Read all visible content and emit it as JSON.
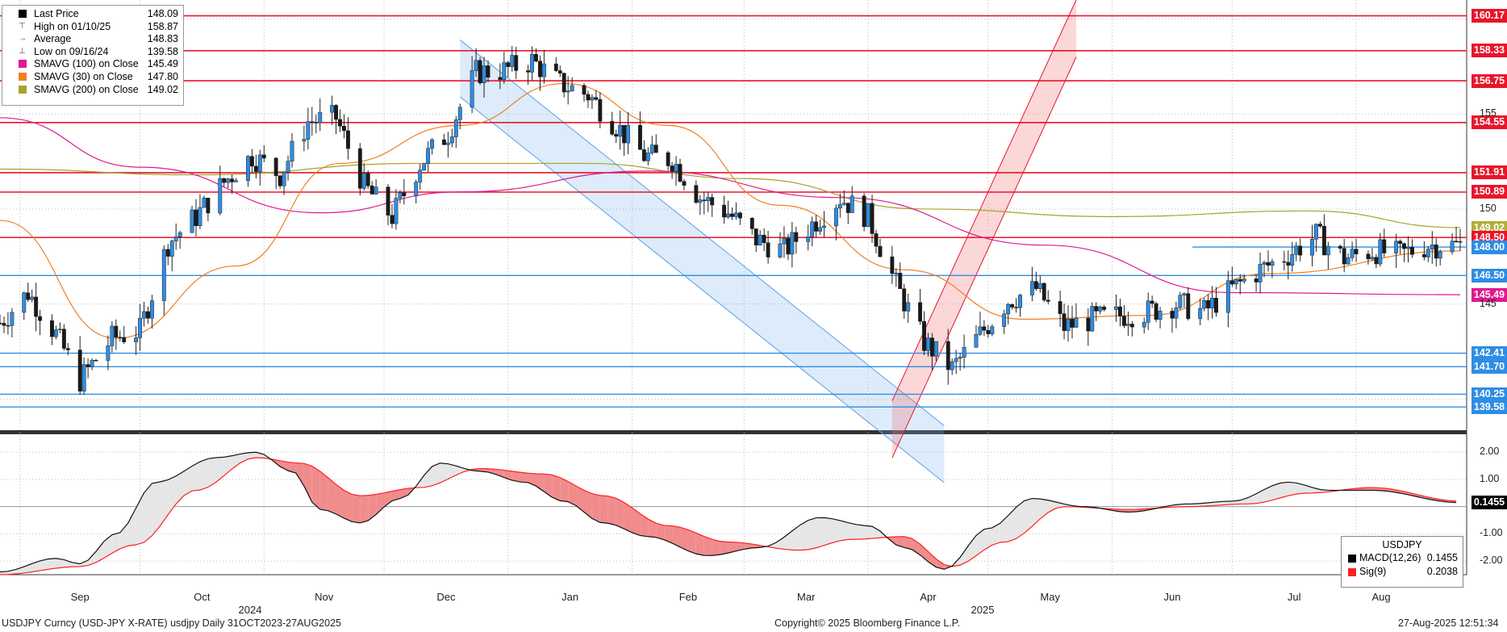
{
  "legend": {
    "items": [
      {
        "name": "Last Price",
        "value": "148.09",
        "color": "#000000",
        "icon": "filled-square"
      },
      {
        "name": "High on 01/10/25",
        "value": "158.87",
        "color": "",
        "icon": "high-marker-icon"
      },
      {
        "name": "Average",
        "value": "148.83",
        "color": "",
        "icon": "average-marker-icon"
      },
      {
        "name": "Low on 09/16/24",
        "value": "139.58",
        "color": "",
        "icon": "low-marker-icon"
      },
      {
        "name": "SMAVG (100)  on Close",
        "value": "145.49",
        "color": "#e0198f",
        "icon": "swatch"
      },
      {
        "name": "SMAVG (30)  on Close",
        "value": "147.80",
        "color": "#f07f22",
        "icon": "swatch"
      },
      {
        "name": "SMAVG (200)  on Close",
        "value": "149.02",
        "color": "#a8a22a",
        "icon": "swatch"
      }
    ]
  },
  "macd_legend": {
    "title": "USDJPY",
    "items": [
      {
        "name": "MACD(12,26)",
        "value": "0.1455",
        "color": "#000000"
      },
      {
        "name": "Sig(9)",
        "value": "0.2038",
        "color": "#ff2020"
      }
    ]
  },
  "price_tags": [
    {
      "label": "160.17",
      "value": 160.17,
      "color": "#e8152b"
    },
    {
      "label": "158.33",
      "value": 158.33,
      "color": "#e8152b"
    },
    {
      "label": "156.75",
      "value": 156.75,
      "color": "#e8152b"
    },
    {
      "label": "154.55",
      "value": 154.55,
      "color": "#e8152b"
    },
    {
      "label": "151.91",
      "value": 151.91,
      "color": "#e8152b"
    },
    {
      "label": "150.89",
      "value": 150.89,
      "color": "#e8152b"
    },
    {
      "label": "149.02",
      "value": 149.02,
      "color": "#a8a22a"
    },
    {
      "label": "148.50",
      "value": 148.5,
      "color": "#e8152b"
    },
    {
      "label": "148.00",
      "value": 148.0,
      "color": "#2f8de4"
    },
    {
      "label": "146.50",
      "value": 146.5,
      "color": "#2f8de4"
    },
    {
      "label": "145.49",
      "value": 145.49,
      "color": "#e0198f"
    },
    {
      "label": "142.41",
      "value": 142.41,
      "color": "#2f8de4"
    },
    {
      "label": "141.70",
      "value": 141.7,
      "color": "#2f8de4"
    },
    {
      "label": "140.25",
      "value": 140.25,
      "color": "#2f8de4"
    },
    {
      "label": "139.58",
      "value": 139.58,
      "color": "#2f8de4"
    }
  ],
  "macd_tag": {
    "label": "0.1455",
    "color": "#000000"
  },
  "price_axis_ticks": [
    "155",
    "150",
    "145"
  ],
  "macd_axis_ticks": [
    "2.00",
    "1.00",
    "-1.00",
    "-2.00"
  ],
  "months": [
    "Sep",
    "Oct",
    "Nov",
    "Dec",
    "Jan",
    "Feb",
    "Mar",
    "Apr",
    "May",
    "Jun",
    "Jul",
    "Aug"
  ],
  "years": [
    "2024",
    "2025"
  ],
  "footer": {
    "left": "USDJPY Curncy (USD-JPY X-RATE) usdjpy  Daily 31OCT2023-27AUG2025",
    "center": "Copyright© 2025 Bloomberg Finance L.P.",
    "right": "27-Aug-2025 12:51:34"
  },
  "colors": {
    "up": "#2f8de4",
    "down": "#1a1a1a",
    "red_line": "#e8152b",
    "blue_line": "#2f8de4"
  },
  "chart_data": {
    "type": "candlestick",
    "title": "",
    "ylim": [
      138.4,
      161.0
    ],
    "macd_ylim": [
      -2.5,
      2.6
    ],
    "horizontal_levels": {
      "resistance_red": [
        160.17,
        158.33,
        156.75,
        154.55,
        151.91,
        150.89,
        148.5
      ],
      "support_blue": [
        146.5,
        142.41,
        141.7,
        140.25,
        139.58,
        148.0
      ]
    },
    "descending_channel": {
      "from": [
        "2024-12-20",
        158.9
      ],
      "to": [
        "2025-04-20",
        138.6
      ],
      "width": 3.0
    },
    "ascending_channel": {
      "from": [
        "2025-04-07",
        139.9
      ],
      "to": [
        "2025-05-23",
        161.0
      ],
      "width": 3.0
    },
    "close_series": {
      "dates": [
        "2024-08-27",
        "2024-09-03",
        "2024-09-10",
        "2024-09-16",
        "2024-09-24",
        "2024-10-01",
        "2024-10-08",
        "2024-10-15",
        "2024-10-22",
        "2024-10-29",
        "2024-11-05",
        "2024-11-12",
        "2024-11-19",
        "2024-11-26",
        "2024-12-03",
        "2024-12-10",
        "2024-12-17",
        "2024-12-24",
        "2024-12-31",
        "2025-01-07",
        "2025-01-14",
        "2025-01-21",
        "2025-01-28",
        "2025-02-04",
        "2025-02-11",
        "2025-02-18",
        "2025-02-25",
        "2025-03-04",
        "2025-03-11",
        "2025-03-18",
        "2025-03-25",
        "2025-04-01",
        "2025-04-08",
        "2025-04-15",
        "2025-04-22",
        "2025-04-29",
        "2025-05-06",
        "2025-05-13",
        "2025-05-20",
        "2025-05-27",
        "2025-06-03",
        "2025-06-10",
        "2025-06-17",
        "2025-06-24",
        "2025-07-01",
        "2025-07-08",
        "2025-07-15",
        "2025-07-22",
        "2025-07-29",
        "2025-08-05",
        "2025-08-12",
        "2025-08-19",
        "2025-08-27"
      ],
      "values": [
        144.0,
        145.6,
        143.4,
        141.0,
        143.2,
        143.6,
        148.2,
        149.6,
        151.4,
        152.8,
        151.8,
        154.6,
        154.8,
        151.2,
        149.6,
        152.4,
        154.0,
        157.2,
        157.3,
        157.8,
        156.6,
        156.0,
        154.4,
        152.8,
        152.6,
        150.6,
        149.8,
        148.4,
        147.8,
        149.2,
        150.6,
        149.6,
        146.0,
        143.0,
        141.6,
        143.4,
        145.2,
        145.8,
        143.8,
        144.2,
        144.4,
        144.6,
        145.0,
        144.6,
        145.8,
        146.8,
        147.6,
        148.6,
        147.4,
        147.8,
        147.6,
        148.1,
        148.09
      ]
    },
    "sma_100": {
      "dates": [
        "2024-08-27",
        "2024-10-01",
        "2024-11-15",
        "2024-12-20",
        "2025-02-05",
        "2025-03-25",
        "2025-05-15",
        "2025-07-01",
        "2025-08-27"
      ],
      "values": [
        154.8,
        152.2,
        149.8,
        150.9,
        152.0,
        150.6,
        148.1,
        145.6,
        145.49
      ]
    },
    "sma_30": {
      "dates": [
        "2024-08-27",
        "2024-09-25",
        "2024-10-25",
        "2024-11-20",
        "2024-12-20",
        "2025-01-15",
        "2025-02-10",
        "2025-03-10",
        "2025-04-10",
        "2025-05-10",
        "2025-06-10",
        "2025-07-10",
        "2025-08-27"
      ],
      "values": [
        149.4,
        143.2,
        147.0,
        152.4,
        154.4,
        156.6,
        154.4,
        150.2,
        146.8,
        144.2,
        144.4,
        146.6,
        147.8
      ]
    },
    "sma_200": {
      "dates": [
        "2024-08-27",
        "2024-10-15",
        "2024-12-10",
        "2025-01-20",
        "2025-03-01",
        "2025-04-15",
        "2025-06-01",
        "2025-07-20",
        "2025-08-27"
      ],
      "values": [
        152.1,
        151.8,
        152.4,
        152.4,
        151.6,
        150.0,
        149.6,
        149.9,
        149.02
      ]
    },
    "macd": {
      "dates": [
        "2024-08-27",
        "2024-09-10",
        "2024-09-16",
        "2024-09-25",
        "2024-10-05",
        "2024-10-20",
        "2024-10-30",
        "2024-11-08",
        "2024-11-15",
        "2024-11-25",
        "2024-12-05",
        "2024-12-15",
        "2024-12-25",
        "2025-01-05",
        "2025-01-15",
        "2025-01-25",
        "2025-02-05",
        "2025-02-20",
        "2025-03-05",
        "2025-03-20",
        "2025-04-01",
        "2025-04-10",
        "2025-04-20",
        "2025-05-01",
        "2025-05-12",
        "2025-05-25",
        "2025-06-05",
        "2025-06-20",
        "2025-07-01",
        "2025-07-15",
        "2025-07-25",
        "2025-08-05",
        "2025-08-27"
      ],
      "values": [
        -2.4,
        -1.9,
        -2.1,
        -1.0,
        0.9,
        1.8,
        2.0,
        1.3,
        -0.1,
        -0.6,
        0.3,
        1.6,
        1.3,
        0.9,
        0.2,
        -0.6,
        -1.1,
        -1.8,
        -1.5,
        -0.4,
        -0.7,
        -1.5,
        -2.3,
        -0.8,
        0.3,
        0.0,
        -0.2,
        0.1,
        0.2,
        0.9,
        0.6,
        0.6,
        0.1455
      ]
    },
    "signal": {
      "dates": [
        "2024-08-27",
        "2024-09-16",
        "2024-09-30",
        "2024-10-15",
        "2024-10-30",
        "2024-11-10",
        "2024-11-25",
        "2024-12-10",
        "2024-12-25",
        "2025-01-10",
        "2025-01-25",
        "2025-02-10",
        "2025-02-25",
        "2025-03-15",
        "2025-03-28",
        "2025-04-10",
        "2025-04-22",
        "2025-05-05",
        "2025-05-20",
        "2025-06-05",
        "2025-06-20",
        "2025-07-05",
        "2025-07-20",
        "2025-08-05",
        "2025-08-27"
      ],
      "values": [
        -2.5,
        -2.2,
        -1.4,
        0.6,
        1.8,
        1.6,
        0.4,
        0.7,
        1.4,
        1.2,
        0.4,
        -0.7,
        -1.3,
        -1.6,
        -1.2,
        -1.1,
        -2.2,
        -1.3,
        0.0,
        -0.1,
        0.0,
        0.1,
        0.5,
        0.7,
        0.2038
      ]
    }
  }
}
